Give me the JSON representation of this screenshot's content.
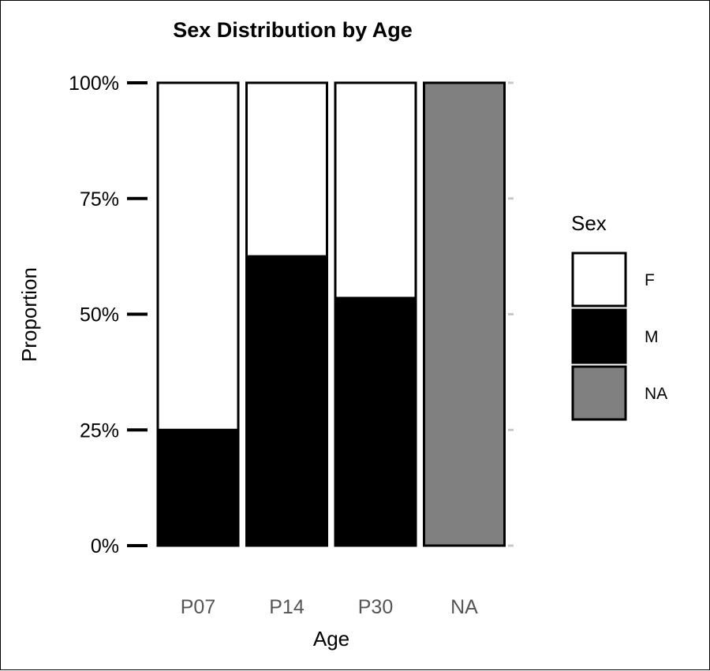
{
  "chart_data": {
    "type": "bar",
    "stacked": true,
    "title": "Sex Distribution by Age",
    "xlabel": "Age",
    "ylabel": "Proportion",
    "categories": [
      "P07",
      "P14",
      "P30",
      "NA"
    ],
    "series": [
      {
        "name": "M",
        "values": [
          0.25,
          0.625,
          0.535,
          0
        ],
        "color": "#000000"
      },
      {
        "name": "F",
        "values": [
          0.75,
          0.375,
          0.465,
          0
        ],
        "color": "#ffffff"
      },
      {
        "name": "NA",
        "values": [
          0,
          0,
          0,
          1.0
        ],
        "color": "#808080"
      }
    ],
    "ylim": [
      0,
      1
    ],
    "y_ticks": [
      {
        "value": 0,
        "label": "0%"
      },
      {
        "value": 0.25,
        "label": "25%"
      },
      {
        "value": 0.5,
        "label": "50%"
      },
      {
        "value": 0.75,
        "label": "75%"
      },
      {
        "value": 1.0,
        "label": "100%"
      }
    ],
    "legend": {
      "title": "Sex",
      "position": "right",
      "entries": [
        {
          "label": "F",
          "color": "#ffffff"
        },
        {
          "label": "M",
          "color": "#000000"
        },
        {
          "label": "NA",
          "color": "#808080"
        }
      ]
    },
    "grid": false
  }
}
